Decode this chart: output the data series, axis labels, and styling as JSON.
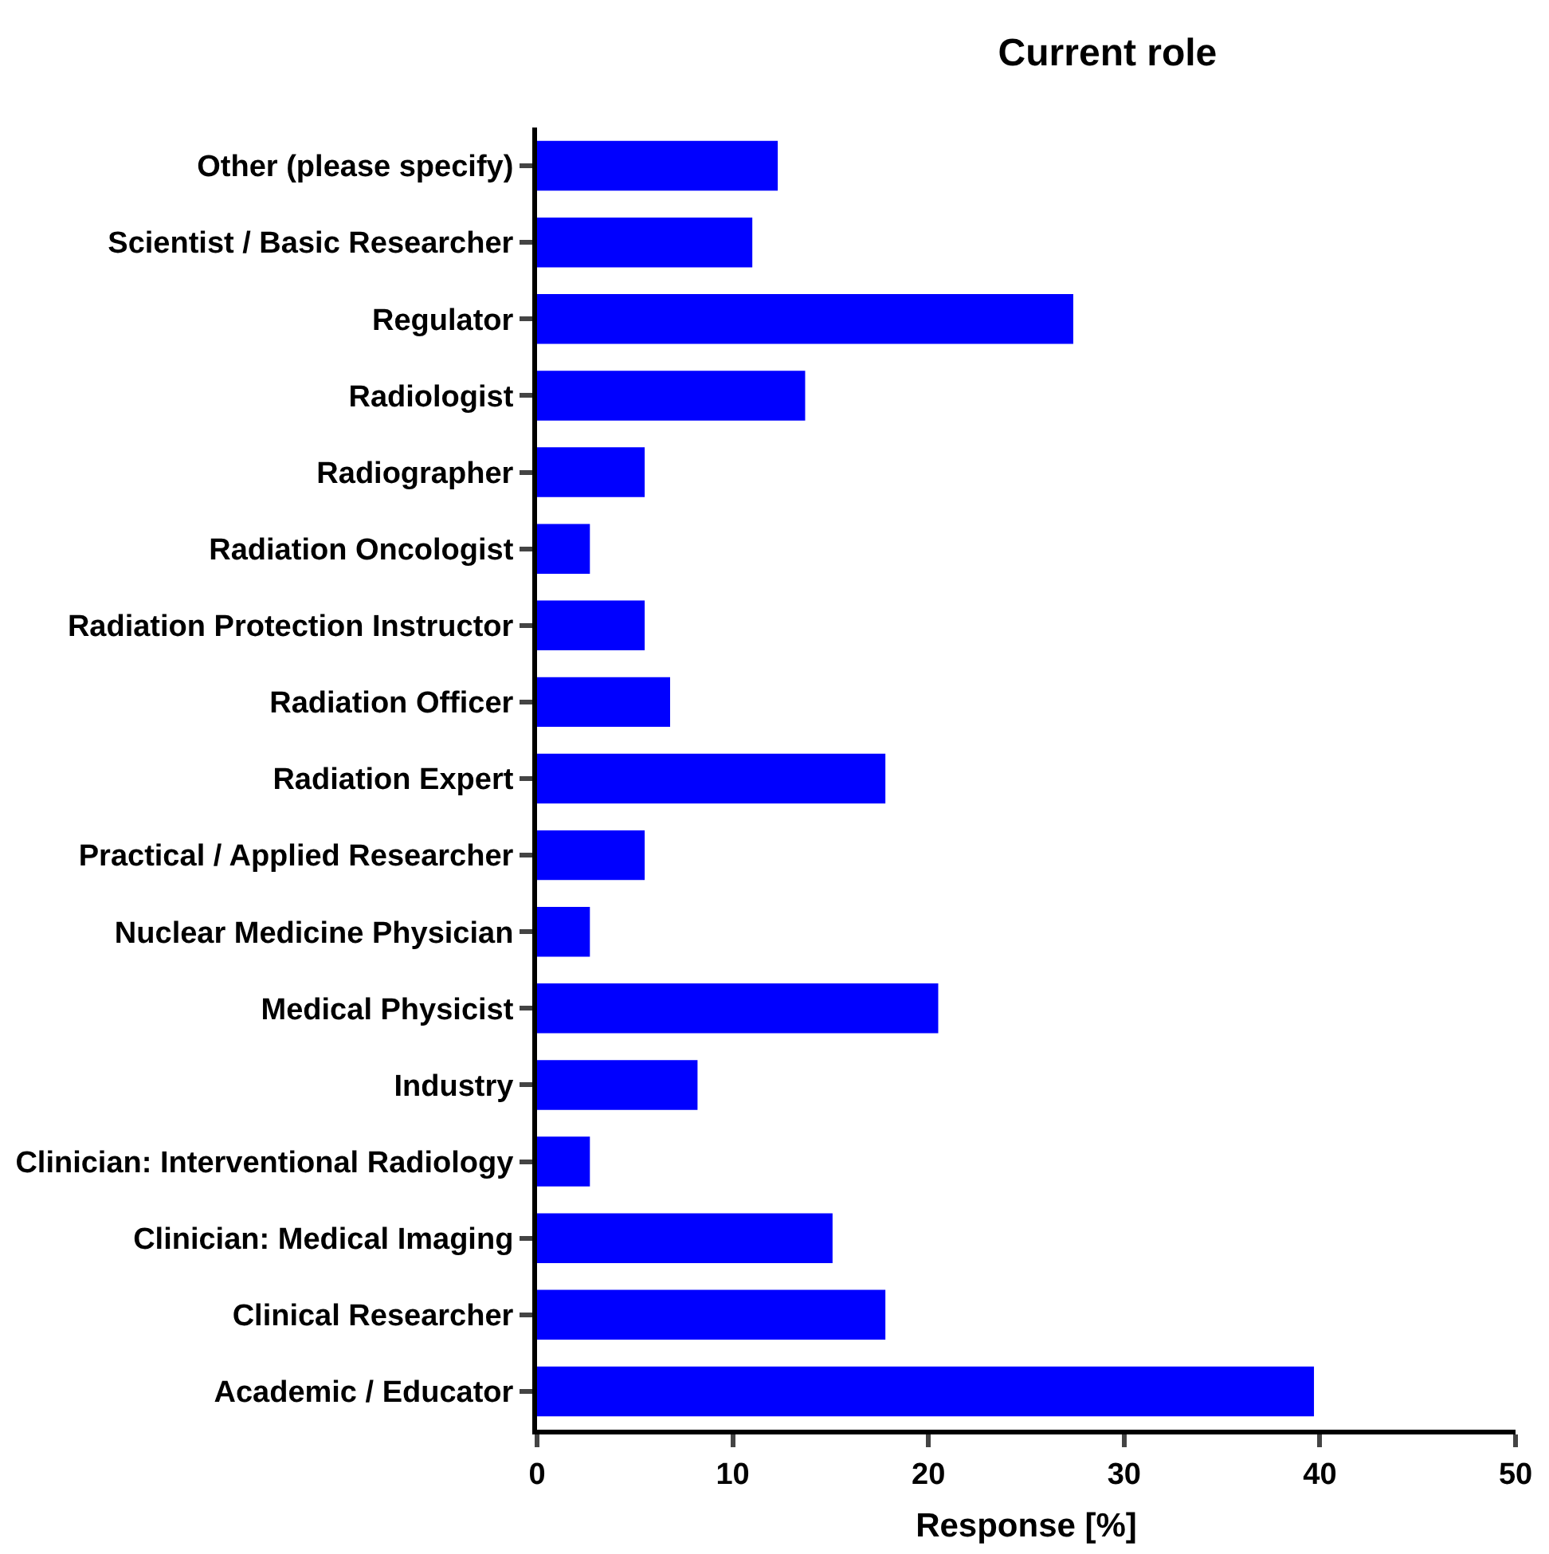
{
  "chart_data": {
    "type": "bar",
    "orientation": "horizontal",
    "title": "Current role",
    "xlabel": "Response [%]",
    "categories": [
      "Other (please specify)",
      "Scientist / Basic Researcher",
      "Regulator",
      "Radiologist",
      "Radiographer",
      "Radiation Oncologist",
      "Radiation Protection Instructor",
      "Radiation Officer",
      "Radiation Expert",
      "Practical / Applied Researcher",
      "Nuclear Medicine Physician",
      "Medical Physicist",
      "Industry",
      "Clinician: Interventional Radiology",
      "Clinician: Medical Imaging",
      "Clinical Researcher",
      "Academic / Educator"
    ],
    "values": [
      12.3,
      11.0,
      27.4,
      13.7,
      5.5,
      2.7,
      5.5,
      6.8,
      17.8,
      5.5,
      2.7,
      20.5,
      8.2,
      2.7,
      15.1,
      17.8,
      39.7
    ],
    "color": "#0000ff",
    "xlim": [
      0,
      50
    ],
    "xticks": [
      0,
      10,
      20,
      30,
      40,
      50
    ],
    "legend": false
  }
}
